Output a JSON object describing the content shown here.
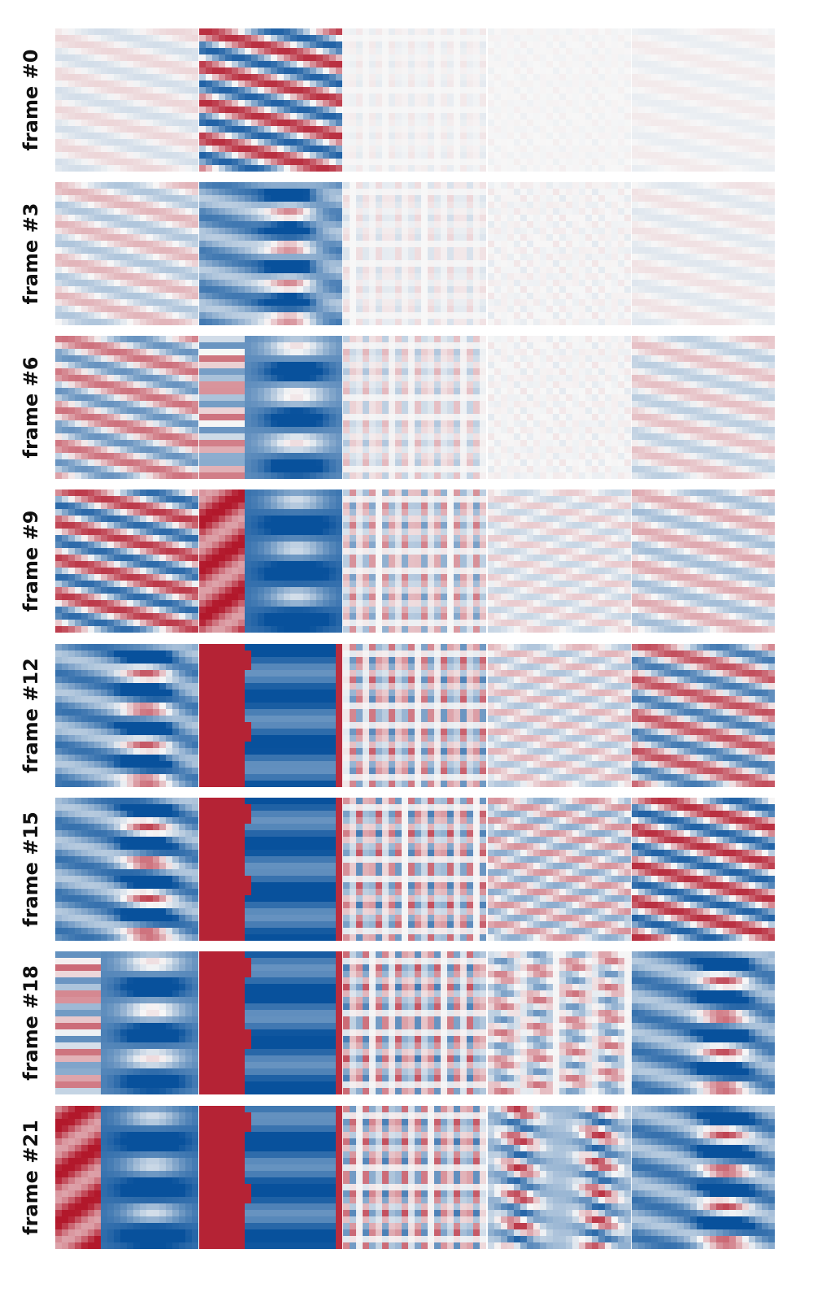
{
  "figure": {
    "row_labels": [
      "frame #0",
      "frame #3",
      "frame #6",
      "frame #9",
      "frame #12",
      "frame #15",
      "frame #18",
      "frame #21"
    ],
    "column_count": 5,
    "colormap": {
      "negative": "#08519c",
      "neutral": "#f7f7f7",
      "positive": "#b2182b"
    }
  },
  "chart_data": {
    "type": "heatmap",
    "title": "",
    "description_note": "8x5 grid of 2D field snapshots rendered with a diverging red-white-blue colormap; rows are frames",
    "rows": [
      "frame #0",
      "frame #3",
      "frame #6",
      "frame #9",
      "frame #12",
      "frame #15",
      "frame #18",
      "frame #21"
    ],
    "columns": 5,
    "panels": [
      [
        {
          "pattern": "stripes",
          "amplitude": 0.15
        },
        {
          "pattern": "stripes",
          "amplitude": 0.9
        },
        {
          "pattern": "checker",
          "amplitude": 0.08
        },
        {
          "pattern": "noise",
          "amplitude": 0.04
        },
        {
          "pattern": "stripes",
          "amplitude": 0.06
        }
      ],
      [
        {
          "pattern": "stripes",
          "amplitude": 0.3
        },
        {
          "pattern": "stripes_blobs",
          "amplitude": 0.85
        },
        {
          "pattern": "checker",
          "amplitude": 0.15
        },
        {
          "pattern": "noise",
          "amplitude": 0.08
        },
        {
          "pattern": "stripes",
          "amplitude": 0.1
        }
      ],
      [
        {
          "pattern": "stripes",
          "amplitude": 0.6
        },
        {
          "pattern": "split_blobs",
          "amplitude": 0.85
        },
        {
          "pattern": "checker",
          "amplitude": 0.3
        },
        {
          "pattern": "noise",
          "amplitude": 0.08
        },
        {
          "pattern": "stripes",
          "amplitude": 0.25
        }
      ],
      [
        {
          "pattern": "stripes",
          "amplitude": 0.85
        },
        {
          "pattern": "split_band",
          "amplitude": 0.95
        },
        {
          "pattern": "checker",
          "amplitude": 0.55
        },
        {
          "pattern": "fine_stripes",
          "amplitude": 0.2
        },
        {
          "pattern": "stripes",
          "amplitude": 0.35
        }
      ],
      [
        {
          "pattern": "stripes_blobs",
          "amplitude": 0.9
        },
        {
          "pattern": "split_solid",
          "amplitude": 1.0
        },
        {
          "pattern": "checker",
          "amplitude": 0.7
        },
        {
          "pattern": "fine_stripes",
          "amplitude": 0.3
        },
        {
          "pattern": "stripes",
          "amplitude": 0.75
        }
      ],
      [
        {
          "pattern": "stripes_blobs",
          "amplitude": 0.9
        },
        {
          "pattern": "split_solid",
          "amplitude": 1.0
        },
        {
          "pattern": "checker",
          "amplitude": 0.75
        },
        {
          "pattern": "fine_stripes",
          "amplitude": 0.45
        },
        {
          "pattern": "stripes",
          "amplitude": 0.9
        }
      ],
      [
        {
          "pattern": "split_blobs",
          "amplitude": 0.9
        },
        {
          "pattern": "split_solid",
          "amplitude": 1.0
        },
        {
          "pattern": "checker",
          "amplitude": 0.75
        },
        {
          "pattern": "ellipses",
          "amplitude": 0.6
        },
        {
          "pattern": "stripes_blobs",
          "amplitude": 0.9
        }
      ],
      [
        {
          "pattern": "split_band",
          "amplitude": 0.95
        },
        {
          "pattern": "split_solid",
          "amplitude": 1.0
        },
        {
          "pattern": "checker",
          "amplitude": 0.75
        },
        {
          "pattern": "twin_helix",
          "amplitude": 0.9
        },
        {
          "pattern": "stripes_blobs",
          "amplitude": 0.9
        }
      ]
    ]
  }
}
